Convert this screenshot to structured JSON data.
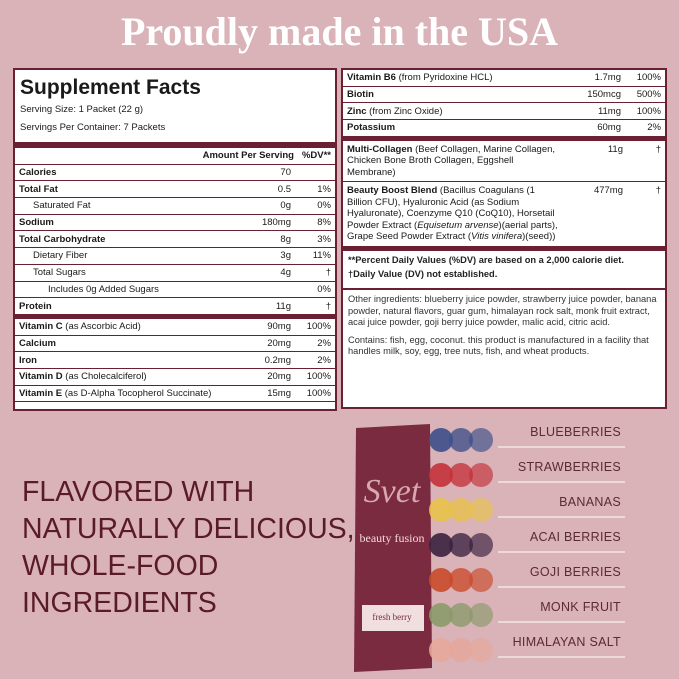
{
  "header": {
    "title": "Proudly made in the USA"
  },
  "facts": {
    "title": "Supplement Facts",
    "serving_size": "Serving Size: 1 Packet (22 g)",
    "servings": "Servings Per Container: 7 Packets",
    "amount_header": "Amount Per Serving",
    "dv_header": "%DV**",
    "rows": [
      {
        "name": "Calories",
        "amount": "70"
      },
      {
        "name": "Total Fat",
        "amount": "0.5",
        "dv": "1%",
        "sub": [
          {
            "name": "Saturated Fat",
            "amount": "0g",
            "dv": "0%"
          }
        ]
      },
      {
        "name": "Sodium",
        "amount": "180mg",
        "dv": "8%"
      },
      {
        "name": "Total Carbohydrate",
        "amount": "8g",
        "dv": "3%",
        "sub": [
          {
            "name": "Dietary Fiber",
            "amount": "3g",
            "dv": "11%"
          },
          {
            "name": "Total Sugars",
            "amount": "4g",
            "dv": "†",
            "sub": [
              {
                "name": "Includes 0g Added Sugars",
                "dv": "0%"
              }
            ]
          }
        ]
      },
      {
        "name": "Protein",
        "amount": "11g",
        "dv": "†"
      }
    ],
    "vitamins": [
      {
        "name": "Vitamin C",
        "note": " (as Ascorbic Acid)",
        "amount": "90mg",
        "dv": "100%"
      },
      {
        "name": "Calcium",
        "amount": "20mg",
        "dv": "2%"
      },
      {
        "name": "Iron",
        "amount": "0.2mg",
        "dv": "2%"
      },
      {
        "name": "Vitamin D",
        "note": " (as Cholecalciferol)",
        "amount": "20mg",
        "dv": "100%"
      },
      {
        "name": "Vitamin E",
        "note": " (as D-Alpha Tocopherol Succinate)",
        "amount": "15mg",
        "dv": "100%"
      }
    ]
  },
  "facts_continued": {
    "rows": [
      {
        "name": "Vitamin B6",
        "note": " (from Pyridoxine HCL)",
        "amount": "1.7mg",
        "dv": "100%"
      },
      {
        "name": "Biotin",
        "amount": "150mcg",
        "dv": "500%"
      },
      {
        "name": "Zinc",
        "note": " (from Zinc Oxide)",
        "amount": "11mg",
        "dv": "100%"
      },
      {
        "name": "Potassium",
        "amount": "60mg",
        "dv": "2%"
      }
    ],
    "blends": [
      {
        "name": "Multi-Collagen",
        "description": [
          {
            "text": " (Beef Collagen, Marine Collagen, Chicken Bone Broth Collagen, Eggshell Membrane)"
          }
        ],
        "amount": "11g",
        "dv": "†"
      },
      {
        "name": "Beauty Boost Blend",
        "description": [
          {
            "text": " (Bacillus Coagulans (1 Billion CFU), Hyaluronic Acid (as Sodium Hyaluronate), Coenzyme Q10 (CoQ10), Horsetail Powder Extract ("
          },
          {
            "text": "Equisetum arvense",
            "style": "italic"
          },
          {
            "text": ")(aerial parts), Grape Seed Powder Extract ("
          },
          {
            "text": "Vitis vinifera",
            "style": "italic"
          },
          {
            "text": ")(seed))"
          }
        ],
        "amount": "477mg",
        "dv": "†"
      }
    ],
    "footnotes": [
      "**Percent Daily Values (%DV) are based on a 2,000 calorie diet.",
      "†Daily Value (DV) not established."
    ],
    "other_ingredients": "Other ingredients: blueberry juice powder, strawberry juice powder, banana powder, natural flavors, guar gum, himalayan rock salt, monk fruit extract, acai juice powder, goji berry juice powder, malic acid, citric acid.",
    "contains": "Contains: fish, egg, coconut. this product is manufactured in a facility that handles milk, soy, egg, tree nuts, fish, and wheat products."
  },
  "headline": [
    "FLAVORED WITH",
    "NATURALLY DELICIOUS,",
    "WHOLE-FOOD",
    "INGREDIENTS"
  ],
  "product": {
    "brand": "Svet",
    "name": "beauty fusion",
    "flavor": "fresh berry"
  },
  "ingredients": [
    "BLUEBERRIES",
    "STRAWBERRIES",
    "BANANAS",
    "ACAI BERRIES",
    "GOJI BERRIES",
    "MONK FRUIT",
    "HIMALAYAN SALT"
  ]
}
